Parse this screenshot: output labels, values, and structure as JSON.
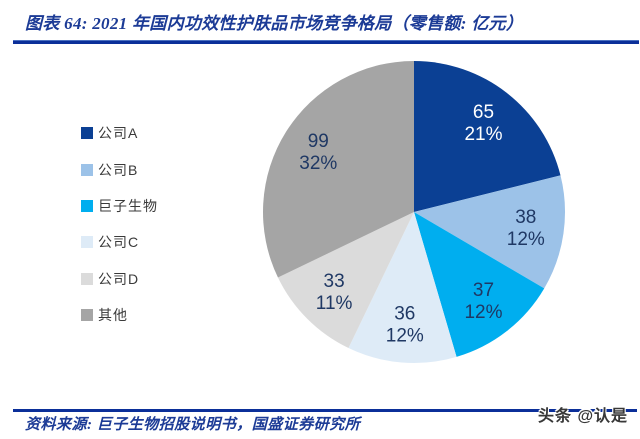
{
  "figure": {
    "title": "图表 64:  2021 年国内功效性护肤品市场竞争格局（零售额: 亿元）",
    "source": "资料来源: 巨子生物招股说明书，国盛证券研究所",
    "watermark": "头条 @认是",
    "accent_color": "#0B2F99",
    "label_color": "#1F3864"
  },
  "chart_data": {
    "type": "pie",
    "title": "2021 年国内功效性护肤品市场竞争格局（零售额: 亿元）",
    "unit": "亿元",
    "start_angle_deg": 0,
    "direction": "clockwise",
    "legend_position": "left",
    "grid": false,
    "slices": [
      {
        "label": "公司A",
        "value": 65,
        "percent": "21%",
        "color": "#0B4094",
        "label_color": "#FFFFFF"
      },
      {
        "label": "公司B",
        "value": 38,
        "percent": "12%",
        "color": "#9CC2E8",
        "label_color": "#1F3864"
      },
      {
        "label": "巨子生物",
        "value": 37,
        "percent": "12%",
        "color": "#00AEEF",
        "label_color": "#1F3864"
      },
      {
        "label": "公司C",
        "value": 36,
        "percent": "12%",
        "color": "#DEEBF7",
        "label_color": "#1F3864"
      },
      {
        "label": "公司D",
        "value": 33,
        "percent": "11%",
        "color": "#DBDBDB",
        "label_color": "#1F3864"
      },
      {
        "label": "其他",
        "value": 99,
        "percent": "32%",
        "color": "#A5A5A5",
        "label_color": "#1F3864"
      }
    ]
  }
}
